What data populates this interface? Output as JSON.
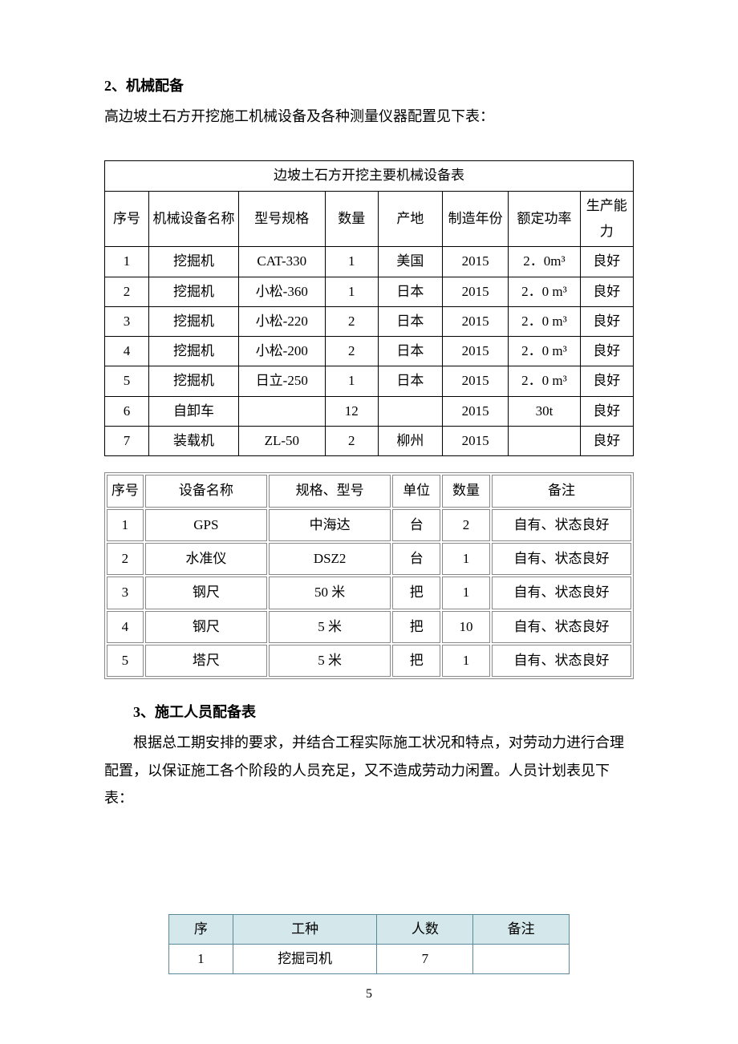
{
  "page_number": "5",
  "section2": {
    "heading": "2、机械配备",
    "intro": "高边坡土石方开挖施工机械设备及各种测量仪器配置见下表："
  },
  "table1": {
    "title": "边坡土石方开挖主要机械设备表",
    "columns": [
      "序号",
      "机械设备名称",
      "型号规格",
      "数量",
      "产地",
      "制造年份",
      "额定功率",
      "生产能力"
    ],
    "border_color": "#000000",
    "font_size": 17,
    "rows": [
      [
        "1",
        "挖掘机",
        "CAT-330",
        "1",
        "美国",
        "2015",
        "2．0m³",
        "良好"
      ],
      [
        "2",
        "挖掘机",
        "小松-360",
        "1",
        "日本",
        "2015",
        "2．0 m³",
        "良好"
      ],
      [
        "3",
        "挖掘机",
        "小松-220",
        "2",
        "日本",
        "2015",
        "2．0 m³",
        "良好"
      ],
      [
        "4",
        "挖掘机",
        "小松-200",
        "2",
        "日本",
        "2015",
        "2．0 m³",
        "良好"
      ],
      [
        "5",
        "挖掘机",
        "日立-250",
        "1",
        "日本",
        "2015",
        "2．0 m³",
        "良好"
      ],
      [
        "6",
        "自卸车",
        "",
        "12",
        "",
        "2015",
        "30t",
        "良好"
      ],
      [
        "7",
        "装载机",
        "ZL-50",
        "2",
        "柳州",
        "2015",
        "",
        "良好"
      ]
    ]
  },
  "table2": {
    "columns": [
      "序号",
      "设备名称",
      "规格、型号",
      "单位",
      "数量",
      "备注"
    ],
    "border_color": "#888888",
    "font_size": 17,
    "rows": [
      [
        "1",
        "GPS",
        "中海达",
        "台",
        "2",
        "自有、状态良好"
      ],
      [
        "2",
        "水准仪",
        "DSZ2",
        "台",
        "1",
        "自有、状态良好"
      ],
      [
        "3",
        "钢尺",
        "50 米",
        "把",
        "1",
        "自有、状态良好"
      ],
      [
        "4",
        "钢尺",
        "5 米",
        "把",
        "10",
        "自有、状态良好"
      ],
      [
        "5",
        "塔尺",
        "5 米",
        "把",
        "1",
        "自有、状态良好"
      ]
    ]
  },
  "section3": {
    "heading": "3、施工人员配备表",
    "body": "根据总工期安排的要求，并结合工程实际施工状况和特点，对劳动力进行合理配置，以保证施工各个阶段的人员充足，又不造成劳动力闲置。人员计划表见下表："
  },
  "table3": {
    "header_bg": "#d4e8ec",
    "border_color": "#5a8a9a",
    "font_size": 17,
    "columns": [
      "序",
      "工种",
      "人数",
      "备注"
    ],
    "rows": [
      [
        "1",
        "挖掘司机",
        "7",
        ""
      ]
    ]
  },
  "colors": {
    "text": "#000000",
    "background": "#ffffff"
  },
  "typography": {
    "base_font": "SimSun",
    "base_size": 18,
    "heading_weight": "bold"
  }
}
